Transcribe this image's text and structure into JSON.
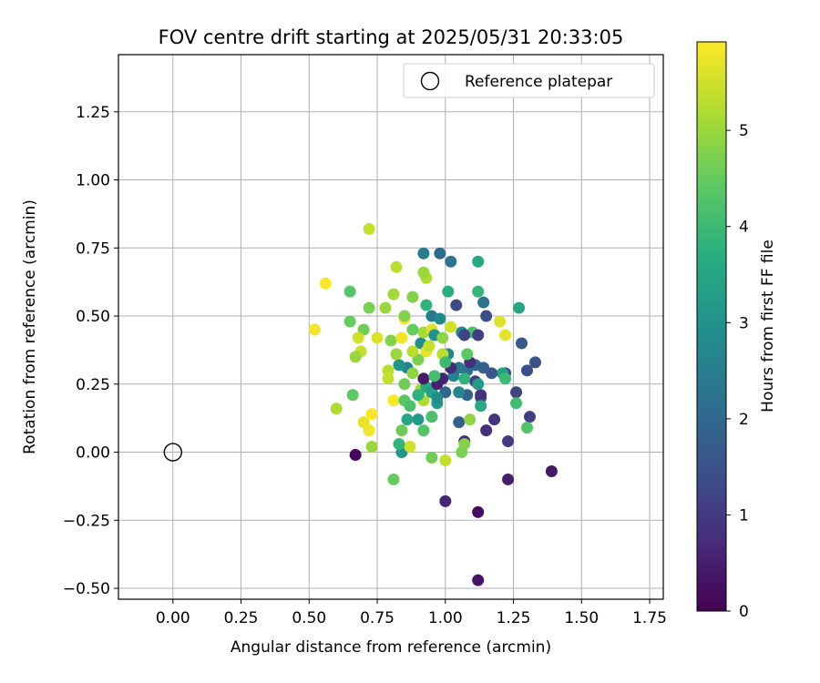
{
  "chart_data": {
    "type": "scatter",
    "title": "FOV centre drift starting at 2025/05/31 20:33:05",
    "xlabel": "Angular distance from reference (arcmin)",
    "ylabel": "Rotation from reference (arcmin)",
    "xlim": [
      -0.2,
      1.8
    ],
    "ylim": [
      -0.54,
      1.46
    ],
    "x_ticks": [
      0.0,
      0.25,
      0.5,
      0.75,
      1.0,
      1.25,
      1.5,
      1.75
    ],
    "x_tick_labels": [
      "0.00",
      "0.25",
      "0.50",
      "0.75",
      "1.00",
      "1.25",
      "1.50",
      "1.75"
    ],
    "y_ticks": [
      -0.5,
      -0.25,
      0.0,
      0.25,
      0.5,
      0.75,
      1.0,
      1.25
    ],
    "y_tick_labels": [
      "−0.50",
      "−0.25",
      "0.00",
      "0.25",
      "0.50",
      "0.75",
      "1.00",
      "1.25"
    ],
    "grid": true,
    "legend": {
      "placement": "top-right",
      "entries": [
        {
          "label": "Reference platepar",
          "marker": "open-circle"
        }
      ]
    },
    "reference_point": {
      "x": 0.0,
      "y": 0.0
    },
    "colorbar": {
      "label": "Hours from first FF file",
      "colormap": "viridis",
      "range": [
        0,
        5.92
      ],
      "ticks": [
        0,
        1,
        2,
        3,
        4,
        5
      ],
      "tick_labels": [
        "0",
        "1",
        "2",
        "3",
        "4",
        "5"
      ]
    },
    "series": [
      {
        "values": [
          [
            0.67,
            -0.01,
            0.1
          ],
          [
            1.12,
            -0.22,
            0.2
          ],
          [
            1.12,
            -0.47,
            0.3
          ],
          [
            1.39,
            -0.07,
            0.4
          ],
          [
            1.23,
            -0.1,
            0.5
          ],
          [
            1.0,
            -0.18,
            0.6
          ],
          [
            1.07,
            0.04,
            0.7
          ],
          [
            1.15,
            0.08,
            0.8
          ],
          [
            1.18,
            0.12,
            0.9
          ],
          [
            1.23,
            0.04,
            1.0
          ],
          [
            1.31,
            0.13,
            1.1
          ],
          [
            1.26,
            0.22,
            1.2
          ],
          [
            1.22,
            0.29,
            1.3
          ],
          [
            1.3,
            0.3,
            1.4
          ],
          [
            1.33,
            0.33,
            1.5
          ],
          [
            1.28,
            0.4,
            1.6
          ],
          [
            1.13,
            0.2,
            1.7
          ],
          [
            1.05,
            0.11,
            1.8
          ],
          [
            1.08,
            0.21,
            1.9
          ],
          [
            1.0,
            0.22,
            2.0
          ],
          [
            0.98,
            0.73,
            2.1
          ],
          [
            1.14,
            0.55,
            2.2
          ],
          [
            1.02,
            0.7,
            2.3
          ],
          [
            0.95,
            0.5,
            2.4
          ],
          [
            0.92,
            0.73,
            2.5
          ],
          [
            0.86,
            0.31,
            2.6
          ],
          [
            1.01,
            0.36,
            2.7
          ],
          [
            1.06,
            0.44,
            2.8
          ],
          [
            0.91,
            0.4,
            2.9
          ],
          [
            0.83,
            0.32,
            3.0
          ],
          [
            0.84,
            0.0,
            3.1
          ],
          [
            0.9,
            0.12,
            3.2
          ],
          [
            0.95,
            0.13,
            3.3
          ],
          [
            1.21,
            0.29,
            3.4
          ],
          [
            1.27,
            0.53,
            3.5
          ],
          [
            1.12,
            0.7,
            3.6
          ],
          [
            1.01,
            0.59,
            3.7
          ],
          [
            0.93,
            0.54,
            3.8
          ],
          [
            1.12,
            0.59,
            3.9
          ],
          [
            1.22,
            0.27,
            4.0
          ],
          [
            1.26,
            0.18,
            4.1
          ],
          [
            1.1,
            0.44,
            4.2
          ],
          [
            1.3,
            0.09,
            4.3
          ],
          [
            0.66,
            0.21,
            4.4
          ],
          [
            0.81,
            -0.1,
            4.5
          ],
          [
            0.95,
            -0.02,
            4.6
          ],
          [
            1.06,
            0.0,
            4.7
          ],
          [
            1.07,
            0.03,
            4.8
          ],
          [
            1.09,
            0.12,
            4.9
          ],
          [
            0.73,
            0.02,
            5.0
          ],
          [
            0.91,
            0.23,
            5.1
          ],
          [
            0.92,
            0.19,
            5.2
          ],
          [
            0.99,
            0.36,
            5.3
          ],
          [
            1.0,
            -0.03,
            5.4
          ],
          [
            0.87,
            0.02,
            5.5
          ],
          [
            1.2,
            0.48,
            5.6
          ],
          [
            1.22,
            0.43,
            5.7
          ],
          [
            0.52,
            0.45,
            5.8
          ],
          [
            0.56,
            0.62,
            5.9
          ],
          [
            0.65,
            0.59,
            4.3
          ],
          [
            0.65,
            0.48,
            4.5
          ],
          [
            0.72,
            0.53,
            4.7
          ],
          [
            0.7,
            0.45,
            4.6
          ],
          [
            0.8,
            0.41,
            4.8
          ],
          [
            0.82,
            0.36,
            5.0
          ],
          [
            0.88,
            0.29,
            4.9
          ],
          [
            0.92,
            0.44,
            5.1
          ],
          [
            0.93,
            0.64,
            5.2
          ],
          [
            0.92,
            0.66,
            5.0
          ],
          [
            0.88,
            0.57,
            4.8
          ],
          [
            0.81,
            0.58,
            5.1
          ],
          [
            0.82,
            0.68,
            5.3
          ],
          [
            0.72,
            0.82,
            5.4
          ],
          [
            0.6,
            0.16,
            5.2
          ],
          [
            0.7,
            0.11,
            5.7
          ],
          [
            0.72,
            0.08,
            5.8
          ],
          [
            0.73,
            0.14,
            5.9
          ],
          [
            0.81,
            0.19,
            5.9
          ],
          [
            0.84,
            0.42,
            5.8
          ],
          [
            0.85,
            0.49,
            5.9
          ],
          [
            0.93,
            0.37,
            5.7
          ],
          [
            0.95,
            0.45,
            5.6
          ],
          [
            1.02,
            0.46,
            5.5
          ],
          [
            0.75,
            0.42,
            5.6
          ],
          [
            0.68,
            0.42,
            5.5
          ],
          [
            0.69,
            0.37,
            5.4
          ],
          [
            0.67,
            0.35,
            5.0
          ],
          [
            0.79,
            0.3,
            5.3
          ],
          [
            0.79,
            0.27,
            5.4
          ],
          [
            0.85,
            0.25,
            4.6
          ],
          [
            0.85,
            0.19,
            4.4
          ],
          [
            0.87,
            0.17,
            4.2
          ],
          [
            0.9,
            0.21,
            3.8
          ],
          [
            0.93,
            0.24,
            3.6
          ],
          [
            0.95,
            0.22,
            3.4
          ],
          [
            0.97,
            0.18,
            3.2
          ],
          [
            0.96,
            0.43,
            3.0
          ],
          [
            0.98,
            0.49,
            2.8
          ],
          [
            1.03,
            0.28,
            2.6
          ],
          [
            1.05,
            0.31,
            2.4
          ],
          [
            1.08,
            0.3,
            2.2
          ],
          [
            1.11,
            0.32,
            2.0
          ],
          [
            1.14,
            0.31,
            1.8
          ],
          [
            1.17,
            0.29,
            1.6
          ],
          [
            1.15,
            0.5,
            1.4
          ],
          [
            1.04,
            0.54,
            1.3
          ],
          [
            1.07,
            0.43,
            1.2
          ],
          [
            1.12,
            0.43,
            1.1
          ],
          [
            1.11,
            0.26,
            1.0
          ],
          [
            1.13,
            0.21,
            0.9
          ],
          [
            1.09,
            0.33,
            0.8
          ],
          [
            1.02,
            0.31,
            0.7
          ],
          [
            0.99,
            0.27,
            0.6
          ],
          [
            0.97,
            0.25,
            0.5
          ],
          [
            0.92,
            0.27,
            0.4
          ],
          [
            0.86,
            0.12,
            3.5
          ],
          [
            0.92,
            0.08,
            4.3
          ],
          [
            0.84,
            0.08,
            4.6
          ],
          [
            0.83,
            0.03,
            3.9
          ],
          [
            0.95,
            0.13,
            4.2
          ],
          [
            1.08,
            0.36,
            4.4
          ],
          [
            1.13,
            0.17,
            3.6
          ],
          [
            1.12,
            0.25,
            3.2
          ],
          [
            1.07,
            0.27,
            3.8
          ],
          [
            1.0,
            0.33,
            4.0
          ],
          [
            0.96,
            0.28,
            4.1
          ],
          [
            0.9,
            0.34,
            4.7
          ],
          [
            0.88,
            0.37,
            5.3
          ],
          [
            0.94,
            0.39,
            5.4
          ],
          [
            0.99,
            0.42,
            4.9
          ],
          [
            0.88,
            0.45,
            4.5
          ],
          [
            0.85,
            0.5,
            4.8
          ],
          [
            0.78,
            0.53,
            5.0
          ],
          [
            0.97,
            0.2,
            2.9
          ],
          [
            1.05,
            0.22,
            2.7
          ]
        ]
      }
    ]
  }
}
